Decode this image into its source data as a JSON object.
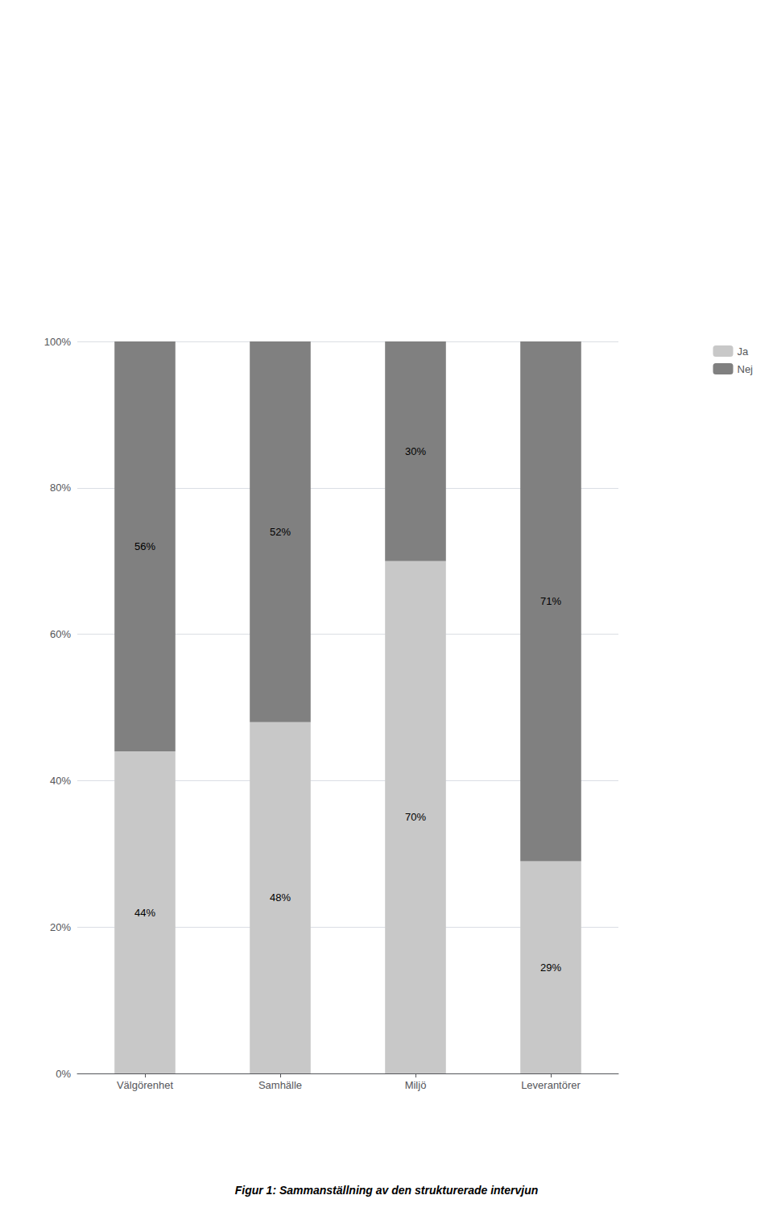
{
  "chart_data": {
    "type": "bar",
    "stacked": true,
    "data_labels": true,
    "categories": [
      "Välgörenhet",
      "Samhälle",
      "Miljö",
      "Leverantörer"
    ],
    "series": [
      {
        "name": "Ja",
        "color": "#c8c8c8",
        "values": [
          44,
          48,
          70,
          29
        ],
        "value_labels": [
          "44%",
          "48%",
          "70%",
          "29%"
        ]
      },
      {
        "name": "Nej",
        "color": "#808080",
        "values": [
          56,
          52,
          30,
          71
        ],
        "value_labels": [
          "56%",
          "52%",
          "30%",
          "71%"
        ]
      }
    ],
    "ylim": [
      0,
      100
    ],
    "yticks": [
      {
        "value": 0,
        "label": "0%"
      },
      {
        "value": 20,
        "label": "20%"
      },
      {
        "value": 40,
        "label": "40%"
      },
      {
        "value": 60,
        "label": "60%"
      },
      {
        "value": 80,
        "label": "80%"
      },
      {
        "value": 100,
        "label": "100%"
      }
    ],
    "grid": true,
    "legend": "upper right",
    "caption": "Figur 1: Sammanställning av den strukturerade intervjun"
  }
}
